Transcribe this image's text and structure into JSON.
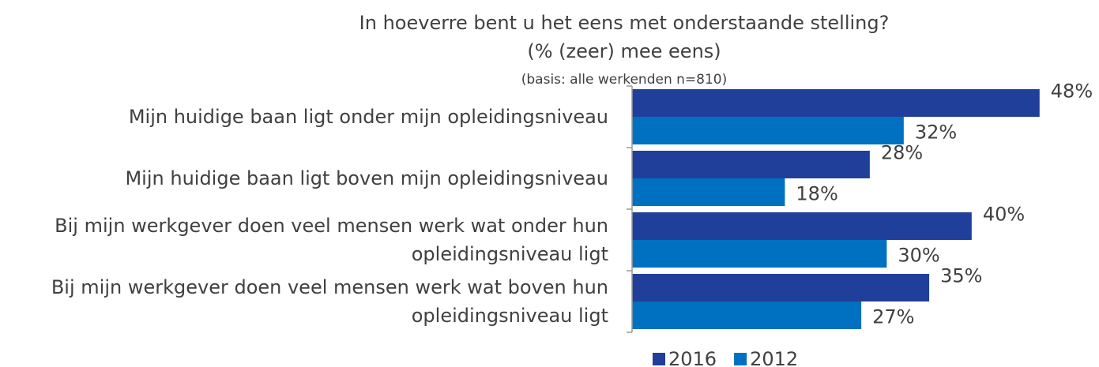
{
  "chart_data": {
    "type": "bar",
    "orientation": "horizontal",
    "title": "In hoeverre bent u het eens met onderstaande stelling?",
    "subtitle": "(% (zeer) mee eens)",
    "note": "(basis: alle werkenden n=810)",
    "categories": [
      "Mijn huidige baan ligt onder mijn opleidingsniveau",
      "Mijn huidige baan ligt boven mijn opleidingsniveau",
      "Bij mijn werkgever doen veel mensen werk wat onder hun opleidingsniveau ligt",
      "Bij mijn werkgever doen veel mensen werk wat boven hun opleidingsniveau ligt"
    ],
    "series": [
      {
        "name": "2016",
        "color": "#203f9a",
        "values": [
          48,
          28,
          40,
          35
        ],
        "value_labels": [
          "48%",
          "28%",
          "40%",
          "35%"
        ]
      },
      {
        "name": "2012",
        "color": "#0070c0",
        "values": [
          32,
          18,
          30,
          27
        ],
        "value_labels": [
          "32%",
          "18%",
          "30%",
          "27%"
        ]
      }
    ],
    "xlim": [
      0,
      55
    ]
  }
}
